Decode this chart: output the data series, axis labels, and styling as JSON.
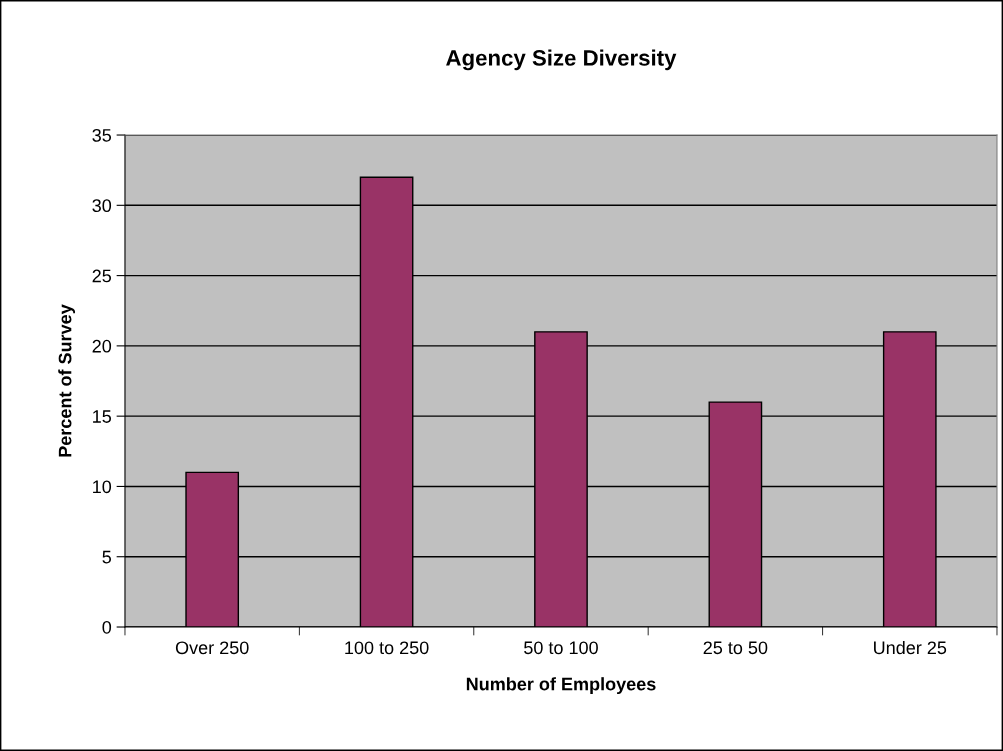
{
  "chart_data": {
    "type": "bar",
    "title": "Agency Size Diversity",
    "xlabel": "Number of Employees",
    "ylabel": "Percent of Survey",
    "categories": [
      "Over 250",
      "100 to 250",
      "50 to 100",
      "25 to 50",
      "Under 25"
    ],
    "values": [
      11,
      32,
      21,
      16,
      21
    ],
    "color": "#993366",
    "ylim": [
      0,
      35
    ],
    "yticks": [
      0,
      5,
      10,
      15,
      20,
      25,
      30,
      35
    ],
    "grid": "y",
    "legend": false
  }
}
